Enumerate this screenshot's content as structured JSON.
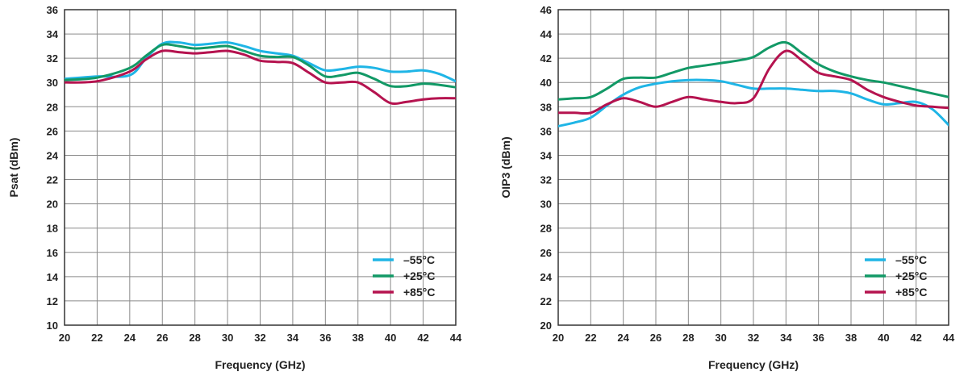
{
  "colors": {
    "m55": "#1fb5e6",
    "p25": "#129966",
    "p85": "#b5134f",
    "grid": "#8a8a8a",
    "frame": "#333333"
  },
  "chart_data": [
    {
      "type": "line",
      "title": "",
      "xlabel": "Frequency (GHz)",
      "ylabel": "Psat (dBm)",
      "xlim": [
        20,
        44
      ],
      "ylim": [
        10,
        36
      ],
      "xticks": [
        "20",
        "22",
        "24",
        "26",
        "28",
        "30",
        "32",
        "34",
        "36",
        "38",
        "40",
        "42",
        "44"
      ],
      "yticks": [
        "10",
        "12",
        "14",
        "16",
        "18",
        "20",
        "22",
        "24",
        "26",
        "28",
        "30",
        "32",
        "34",
        "36"
      ],
      "grid": true,
      "legend_position": "bottom-right",
      "series": [
        {
          "name": "–55°C",
          "color_key": "m55",
          "x": [
            20,
            22,
            24,
            25,
            26,
            27,
            28,
            29,
            30,
            31,
            32,
            33,
            34,
            35,
            36,
            37,
            38,
            39,
            40,
            41,
            42,
            43,
            44
          ],
          "y": [
            30.3,
            30.5,
            30.6,
            32.0,
            33.2,
            33.3,
            33.1,
            33.2,
            33.3,
            33.0,
            32.6,
            32.4,
            32.2,
            31.6,
            31.0,
            31.1,
            31.3,
            31.2,
            30.9,
            30.9,
            31.0,
            30.7,
            30.1
          ]
        },
        {
          "name": "+25°C",
          "color_key": "p25",
          "x": [
            20,
            22,
            24,
            25,
            26,
            27,
            28,
            29,
            30,
            31,
            32,
            33,
            34,
            35,
            36,
            37,
            38,
            39,
            40,
            41,
            42,
            43,
            44
          ],
          "y": [
            30.2,
            30.4,
            31.2,
            32.2,
            33.1,
            33.0,
            32.8,
            32.9,
            33.0,
            32.6,
            32.2,
            32.1,
            32.1,
            31.4,
            30.5,
            30.6,
            30.8,
            30.3,
            29.7,
            29.7,
            29.9,
            29.8,
            29.6
          ]
        },
        {
          "name": "+85°C",
          "color_key": "p85",
          "x": [
            20,
            22,
            24,
            25,
            26,
            27,
            28,
            29,
            30,
            31,
            32,
            33,
            34,
            35,
            36,
            37,
            38,
            39,
            40,
            41,
            42,
            43,
            44
          ],
          "y": [
            30.0,
            30.1,
            30.9,
            31.9,
            32.6,
            32.5,
            32.4,
            32.5,
            32.6,
            32.3,
            31.8,
            31.7,
            31.6,
            30.8,
            30.0,
            30.0,
            30.0,
            29.2,
            28.3,
            28.4,
            28.6,
            28.7,
            28.7
          ]
        }
      ]
    },
    {
      "type": "line",
      "title": "",
      "xlabel": "Frequency (GHz)",
      "ylabel": "OIP3 (dBm)",
      "xlim": [
        20,
        44
      ],
      "ylim": [
        20,
        46
      ],
      "xticks": [
        "20",
        "22",
        "24",
        "26",
        "28",
        "30",
        "32",
        "34",
        "36",
        "38",
        "40",
        "42",
        "44"
      ],
      "yticks": [
        "20",
        "22",
        "24",
        "26",
        "28",
        "30",
        "32",
        "34",
        "36",
        "38",
        "40",
        "42",
        "44",
        "46"
      ],
      "grid": true,
      "legend_position": "bottom-right",
      "series": [
        {
          "name": "–55°C",
          "color_key": "m55",
          "x": [
            20,
            21,
            22,
            23,
            24,
            25,
            26,
            27,
            28,
            29,
            30,
            31,
            32,
            33,
            34,
            35,
            36,
            37,
            38,
            39,
            40,
            41,
            42,
            43,
            44
          ],
          "y": [
            36.4,
            36.7,
            37.1,
            38.1,
            39.0,
            39.6,
            39.9,
            40.1,
            40.2,
            40.2,
            40.1,
            39.8,
            39.5,
            39.5,
            39.5,
            39.4,
            39.3,
            39.3,
            39.1,
            38.6,
            38.2,
            38.3,
            38.4,
            37.8,
            36.5
          ]
        },
        {
          "name": "+25°C",
          "color_key": "p25",
          "x": [
            20,
            21,
            22,
            23,
            24,
            25,
            26,
            27,
            28,
            29,
            30,
            31,
            32,
            33,
            34,
            35,
            36,
            37,
            38,
            39,
            40,
            41,
            42,
            43,
            44
          ],
          "y": [
            38.6,
            38.7,
            38.8,
            39.5,
            40.3,
            40.4,
            40.4,
            40.8,
            41.2,
            41.4,
            41.6,
            41.8,
            42.1,
            42.9,
            43.3,
            42.4,
            41.5,
            40.9,
            40.5,
            40.2,
            40.0,
            39.7,
            39.4,
            39.1,
            38.8
          ]
        },
        {
          "name": "+85°C",
          "color_key": "p85",
          "x": [
            20,
            21,
            22,
            23,
            24,
            25,
            26,
            27,
            28,
            29,
            30,
            31,
            32,
            33,
            34,
            35,
            36,
            37,
            38,
            39,
            40,
            41,
            42,
            43,
            44
          ],
          "y": [
            37.5,
            37.5,
            37.5,
            38.2,
            38.7,
            38.4,
            38.0,
            38.4,
            38.8,
            38.6,
            38.4,
            38.3,
            38.7,
            41.2,
            42.6,
            41.8,
            40.8,
            40.5,
            40.2,
            39.4,
            38.8,
            38.4,
            38.1,
            38.0,
            37.9
          ]
        }
      ]
    }
  ]
}
